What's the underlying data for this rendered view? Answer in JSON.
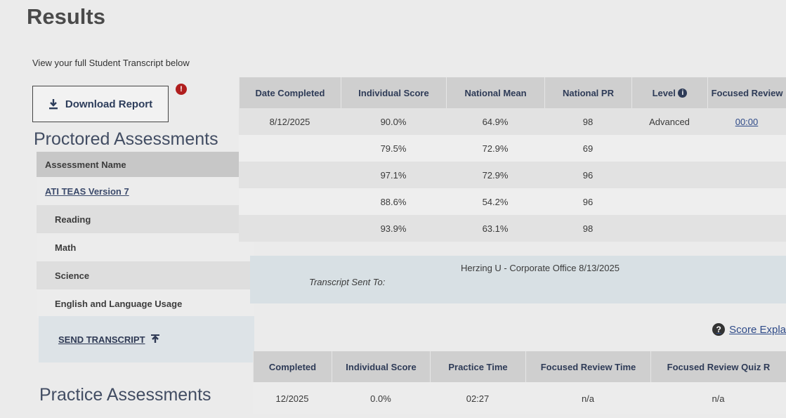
{
  "header": {
    "title": "Results",
    "intro": "View your full Student Transcript below",
    "download_label": "Download Report",
    "download_icon": "download-icon",
    "info_icon": "info-alert-icon"
  },
  "proctored": {
    "section_title": "Proctored Assessments",
    "left_header": "Assessment Name",
    "assessment": "ATI TEAS Version 7",
    "subjects": [
      "Reading",
      "Math",
      "Science",
      "English and Language Usage"
    ],
    "send_transcript_label": "SEND TRANSCRIPT",
    "columns": [
      "Date Completed",
      "Individual Score",
      "National Mean",
      "National PR",
      "Level",
      "Focused Review"
    ],
    "rows": [
      {
        "date": "8/12/2025",
        "score": "90.0%",
        "mean": "64.9%",
        "pr": "98",
        "level": "Advanced",
        "review": "00:00"
      },
      {
        "date": "",
        "score": "79.5%",
        "mean": "72.9%",
        "pr": "69",
        "level": "",
        "review": ""
      },
      {
        "date": "",
        "score": "97.1%",
        "mean": "72.9%",
        "pr": "96",
        "level": "",
        "review": ""
      },
      {
        "date": "",
        "score": "88.6%",
        "mean": "54.2%",
        "pr": "96",
        "level": "",
        "review": ""
      },
      {
        "date": "",
        "score": "93.9%",
        "mean": "63.1%",
        "pr": "98",
        "level": "",
        "review": ""
      }
    ],
    "transcript_sent_label": "Transcript Sent To:",
    "transcript_sent_value": "Herzing U - Corporate Office 8/13/2025"
  },
  "score_explanation_label": "Score Expla",
  "practice": {
    "section_title": "Practice Assessments",
    "columns": [
      "Completed",
      "Individual Score",
      "Practice Time",
      "Focused Review Time",
      "Focused Review Quiz R"
    ],
    "rows": [
      {
        "completed": "12/2025",
        "score": "0.0%",
        "time": "02:27",
        "review_time": "n/a",
        "quiz": "n/a"
      }
    ]
  }
}
